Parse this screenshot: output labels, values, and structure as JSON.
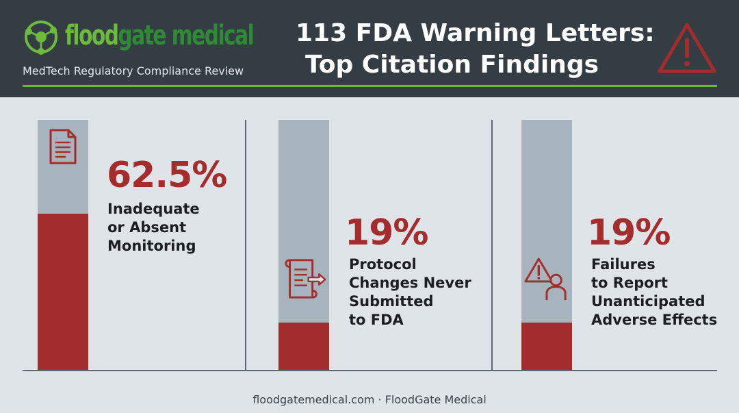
{
  "header": {
    "brand_part1": "flood",
    "brand_part2": "gate medical",
    "tagline": "MedTech Regulatory Compliance Review",
    "title_line1": "113 FDA Warning Letters:",
    "title_line2": "Top Citation Findings",
    "logo_icon": "network-node-icon",
    "alert_icon": "warning-triangle-icon"
  },
  "colors": {
    "header_bg": "#343c44",
    "accent_green": "#6cbb3c",
    "brand_dark_green": "#2f8a36",
    "bar_red": "#a32d2d",
    "bar_track": "#a7b4bd",
    "background": "#dfe4e9"
  },
  "chart_data": {
    "type": "bar",
    "categories": [
      "Inadequate\nor Absent\nMonitoring",
      "Protocol\nChanges Never\nSubmitted\nto FDA",
      "Failures\nto Report\nUnanticipated\nAdverse Effects"
    ],
    "values": [
      62.5,
      19,
      19
    ],
    "value_labels": [
      "62.5%",
      "19%",
      "19%"
    ],
    "icons": [
      "document-icon",
      "scroll-arrow-icon",
      "alert-person-icon"
    ],
    "unit": "%",
    "ylim": [
      0,
      100
    ],
    "grid": false,
    "legend": "none"
  },
  "footer": {
    "text": "floodgatemedical.com · FloodGate Medical"
  }
}
